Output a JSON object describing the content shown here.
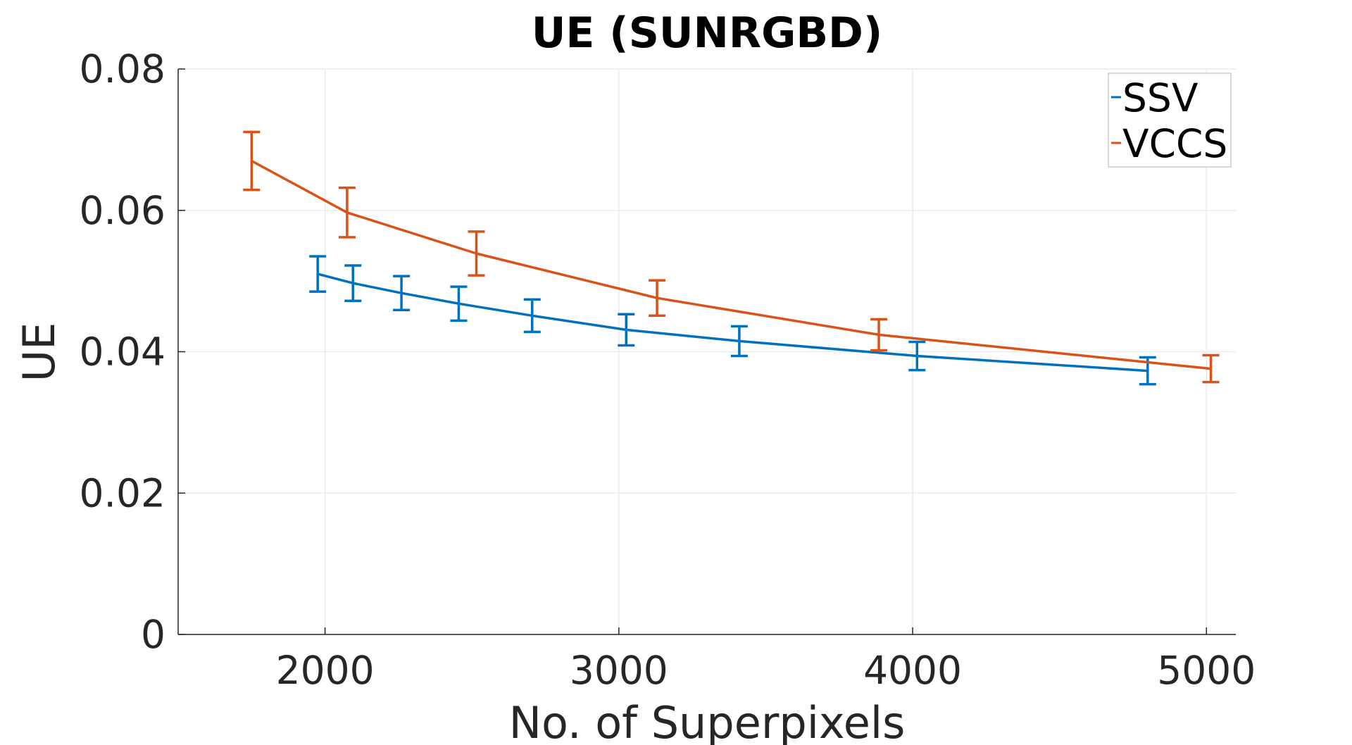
{
  "chart_data": {
    "type": "line",
    "title": "UE (SUNRGBD)",
    "xlabel": "No. of Superpixels",
    "ylabel": "UE",
    "xlim": [
      1500,
      5100
    ],
    "ylim": [
      0,
      0.08
    ],
    "x_ticks": [
      2000,
      3000,
      4000,
      5000
    ],
    "x_tick_labels": [
      "2000",
      "3000",
      "4000",
      "5000"
    ],
    "y_ticks": [
      0,
      0.02,
      0.04,
      0.06,
      0.08
    ],
    "y_tick_labels": [
      "0",
      "0.02",
      "0.04",
      "0.06",
      "0.08"
    ],
    "grid": true,
    "legend_position": "top-right",
    "series": [
      {
        "name": "SSV",
        "color": "#0072BD",
        "x": [
          1975,
          2095,
          2260,
          2455,
          2705,
          3025,
          3410,
          4015,
          4800
        ],
        "y": [
          0.051,
          0.0497,
          0.0483,
          0.0468,
          0.0451,
          0.0431,
          0.0415,
          0.0394,
          0.0373
        ],
        "err": [
          0.0025,
          0.0025,
          0.0024,
          0.0024,
          0.0023,
          0.0022,
          0.0021,
          0.002,
          0.0019
        ]
      },
      {
        "name": "VCCS",
        "color": "#D95319",
        "x": [
          1750,
          2075,
          2515,
          3130,
          3885,
          5015
        ],
        "y": [
          0.067,
          0.0597,
          0.0539,
          0.0476,
          0.0424,
          0.0376
        ],
        "err": [
          0.0041,
          0.0035,
          0.0031,
          0.0025,
          0.0022,
          0.0019
        ]
      }
    ]
  }
}
